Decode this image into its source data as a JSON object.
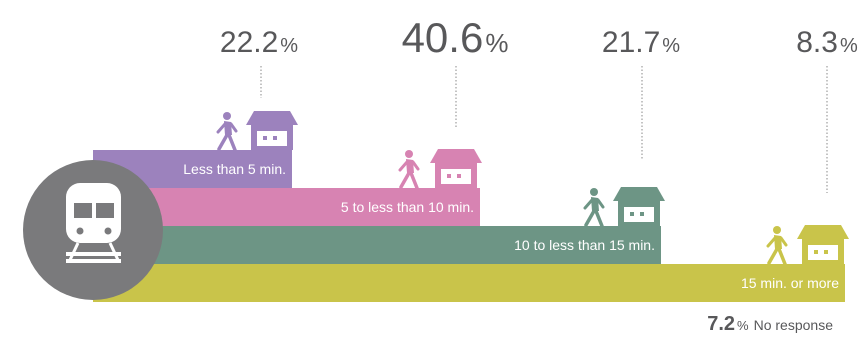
{
  "chart_data": {
    "type": "bar",
    "categories": [
      "Less than 5 min.",
      "5 to less than 10 min.",
      "10 to less than 15 min.",
      "15 min. or more"
    ],
    "values": [
      22.2,
      40.6,
      21.7,
      8.3
    ],
    "value_labels": [
      "22.2",
      "40.6",
      "21.7",
      "8.3"
    ],
    "unit": "%",
    "colors": [
      "#9c82bd",
      "#d783b2",
      "#6d9585",
      "#c9c44a"
    ],
    "icons": [
      "person-walking-icon",
      "house-icon",
      "train-icon"
    ],
    "no_response": {
      "value": 7.2,
      "value_label": "7.2",
      "unit": "%",
      "label": "No response"
    }
  }
}
